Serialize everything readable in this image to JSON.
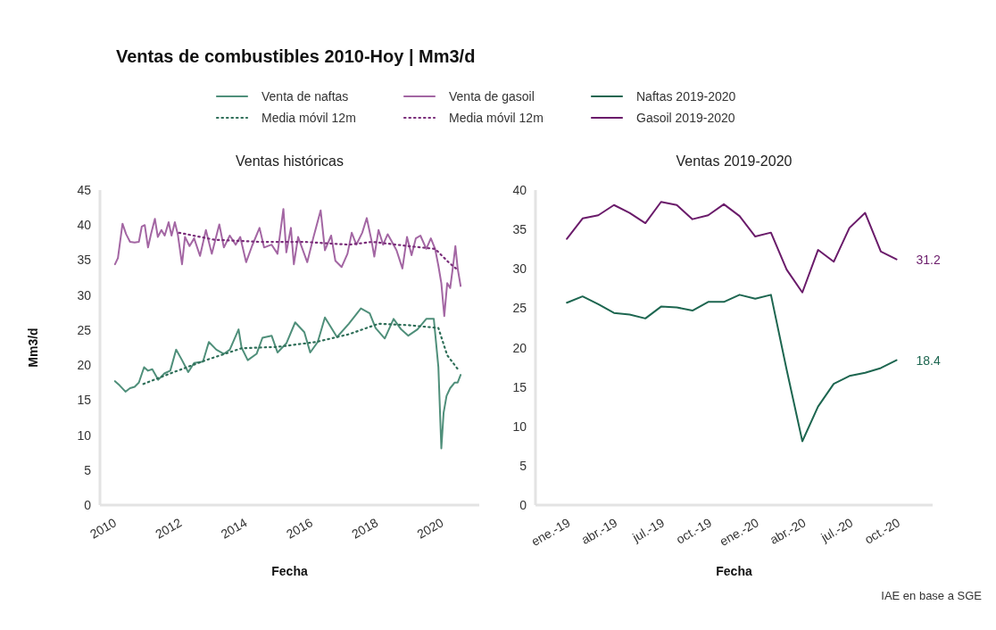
{
  "chart_data": [
    {
      "type": "line",
      "title": "Ventas de combustibles 2010-Hoy | Mm3/d",
      "subtitle": "Ventas históricas",
      "xlabel": "Fecha",
      "ylabel": "Mm3/d",
      "xlim": [
        2009.6,
        2021.2
      ],
      "xticks": [
        2010,
        2012,
        2014,
        2016,
        2018,
        2020
      ],
      "ylim": [
        0,
        45
      ],
      "yticks": [
        0,
        5,
        10,
        15,
        20,
        25,
        30,
        35,
        40,
        45
      ],
      "legend": "top",
      "line_style": "solid",
      "series": [
        {
          "name": "Venta de naftas",
          "color": "#4f8f7a",
          "x": [
            2010.06,
            2010.2,
            2010.38,
            2010.52,
            2010.66,
            2010.79,
            2010.95,
            2011.07,
            2011.2,
            2011.38,
            2011.57,
            2011.75,
            2011.93,
            2012.11,
            2012.3,
            2012.48,
            2012.75,
            2012.93,
            2013.16,
            2013.39,
            2013.57,
            2013.84,
            2013.93,
            2014.12,
            2014.39,
            2014.57,
            2014.85,
            2015.03,
            2015.3,
            2015.57,
            2015.85,
            2016.03,
            2016.26,
            2016.48,
            2016.85,
            2017.21,
            2017.58,
            2017.85,
            2018.03,
            2018.31,
            2018.58,
            2018.81,
            2019.03,
            2019.31,
            2019.58,
            2019.81,
            2019.95,
            2020.04,
            2020.11,
            2020.2,
            2020.31,
            2020.45,
            2020.54,
            2020.63
          ],
          "values": [
            17.7,
            17.1,
            16.2,
            16.7,
            16.9,
            17.5,
            19.7,
            19.2,
            19.4,
            17.9,
            18.8,
            19.2,
            22.2,
            20.7,
            19.0,
            20.3,
            20.5,
            23.3,
            22.2,
            21.6,
            22.2,
            25.1,
            22.5,
            20.7,
            21.6,
            23.9,
            24.2,
            21.8,
            23.1,
            26.1,
            24.7,
            21.8,
            23.3,
            26.8,
            24.0,
            25.9,
            28.1,
            27.4,
            25.3,
            23.8,
            26.6,
            25.1,
            24.2,
            25.1,
            26.6,
            26.6,
            19.7,
            8.1,
            13.2,
            15.6,
            16.7,
            17.5,
            17.5,
            18.6
          ]
        },
        {
          "name": "Media móvil 12m",
          "color": "#2e6e58",
          "line_style": "dotted",
          "x": [
            2010.93,
            2011.75,
            2012.84,
            2013.93,
            2015.03,
            2016.21,
            2017.21,
            2018.12,
            2019.03,
            2019.95,
            2020.22,
            2020.58
          ],
          "values": [
            17.3,
            18.8,
            20.7,
            22.4,
            22.6,
            23.3,
            24.4,
            25.9,
            25.7,
            25.3,
            21.4,
            19.2
          ]
        },
        {
          "name": "Venta de gasoil",
          "color": "#a366a3",
          "x": [
            2010.06,
            2010.15,
            2010.29,
            2010.4,
            2010.52,
            2010.66,
            2010.79,
            2010.88,
            2010.97,
            2011.07,
            2011.16,
            2011.28,
            2011.37,
            2011.48,
            2011.58,
            2011.7,
            2011.79,
            2011.89,
            2011.98,
            2012.11,
            2012.2,
            2012.34,
            2012.48,
            2012.66,
            2012.84,
            2013.02,
            2013.25,
            2013.39,
            2013.57,
            2013.75,
            2013.89,
            2014.07,
            2014.25,
            2014.48,
            2014.62,
            2014.85,
            2015.03,
            2015.21,
            2015.3,
            2015.44,
            2015.53,
            2015.66,
            2015.94,
            2016.12,
            2016.35,
            2016.48,
            2016.67,
            2016.8,
            2016.99,
            2017.17,
            2017.3,
            2017.44,
            2017.62,
            2017.76,
            2017.9,
            2017.99,
            2018.12,
            2018.26,
            2018.4,
            2018.53,
            2018.67,
            2018.85,
            2018.99,
            2019.13,
            2019.26,
            2019.4,
            2019.58,
            2019.72,
            2019.85,
            2019.95,
            2020.04,
            2020.13,
            2020.22,
            2020.31,
            2020.4,
            2020.47,
            2020.54,
            2020.63
          ],
          "values": [
            34.4,
            35.3,
            40.2,
            38.7,
            37.6,
            37.5,
            37.6,
            39.8,
            40.0,
            36.8,
            38.7,
            40.9,
            38.3,
            39.3,
            38.5,
            40.4,
            38.5,
            40.4,
            38.7,
            34.4,
            38.3,
            37.0,
            38.1,
            35.6,
            39.3,
            35.9,
            40.1,
            36.8,
            38.5,
            37.2,
            38.3,
            34.7,
            37.0,
            39.6,
            36.8,
            37.2,
            35.9,
            42.3,
            36.1,
            39.6,
            34.4,
            38.3,
            34.7,
            38.1,
            42.1,
            36.4,
            38.5,
            34.9,
            34.0,
            35.9,
            38.9,
            37.2,
            38.9,
            41.0,
            37.9,
            35.5,
            39.3,
            37.2,
            38.7,
            37.6,
            36.4,
            33.8,
            38.3,
            35.7,
            38.1,
            38.5,
            36.6,
            38.1,
            36.6,
            34.2,
            31.7,
            27.0,
            31.7,
            31.0,
            34.2,
            37.0,
            33.8,
            31.3
          ]
        },
        {
          "name": "Media móvil 12m",
          "color": "#7a2d7a",
          "line_style": "dotted",
          "x": [
            2012.02,
            2013.11,
            2014.48,
            2015.85,
            2017.21,
            2017.94,
            2019.03,
            2019.85,
            2020.26,
            2020.54
          ],
          "values": [
            38.9,
            37.9,
            37.6,
            37.6,
            37.2,
            37.6,
            37.0,
            36.6,
            34.7,
            33.6
          ]
        }
      ]
    },
    {
      "type": "line",
      "subtitle": "Ventas 2019-2020",
      "xlabel": "Fecha",
      "ylim": [
        0,
        40
      ],
      "yticks": [
        0,
        5,
        10,
        15,
        20,
        25,
        30,
        35,
        40
      ],
      "legend": "top",
      "line_style": "solid",
      "annotations": [
        "IAE en base a SGE"
      ],
      "categories": [
        "ene.-19",
        null,
        null,
        "abr.-19",
        null,
        null,
        "jul.-19",
        null,
        null,
        "oct.-19",
        null,
        null,
        "ene.-20",
        null,
        null,
        "abr.-20",
        null,
        null,
        "jul.-20",
        null,
        null,
        "oct.-20"
      ],
      "series": [
        {
          "name": "Naftas 2019-2020",
          "color": "#1d6650",
          "values": [
            25.7,
            26.5,
            25.5,
            24.4,
            24.2,
            23.7,
            25.2,
            25.1,
            24.7,
            25.8,
            25.8,
            26.7,
            26.2,
            26.7,
            17.2,
            8.1,
            12.5,
            15.4,
            16.4,
            16.8,
            17.4,
            18.4
          ],
          "value_labels": [
            null,
            null,
            null,
            null,
            null,
            null,
            null,
            null,
            null,
            null,
            null,
            null,
            null,
            null,
            null,
            null,
            null,
            null,
            null,
            null,
            null,
            "18.4"
          ]
        },
        {
          "name": "Gasoil 2019-2020",
          "color": "#6a1b6a",
          "values": [
            33.8,
            36.4,
            36.8,
            38.1,
            37.1,
            35.8,
            38.5,
            38.1,
            36.3,
            36.8,
            38.2,
            36.7,
            34.1,
            34.6,
            29.9,
            27.0,
            32.4,
            30.9,
            35.2,
            37.1,
            32.2,
            31.2
          ],
          "value_labels": [
            null,
            null,
            null,
            null,
            null,
            null,
            null,
            null,
            null,
            null,
            null,
            null,
            null,
            null,
            null,
            null,
            null,
            null,
            null,
            null,
            null,
            "31.2"
          ]
        }
      ]
    }
  ]
}
